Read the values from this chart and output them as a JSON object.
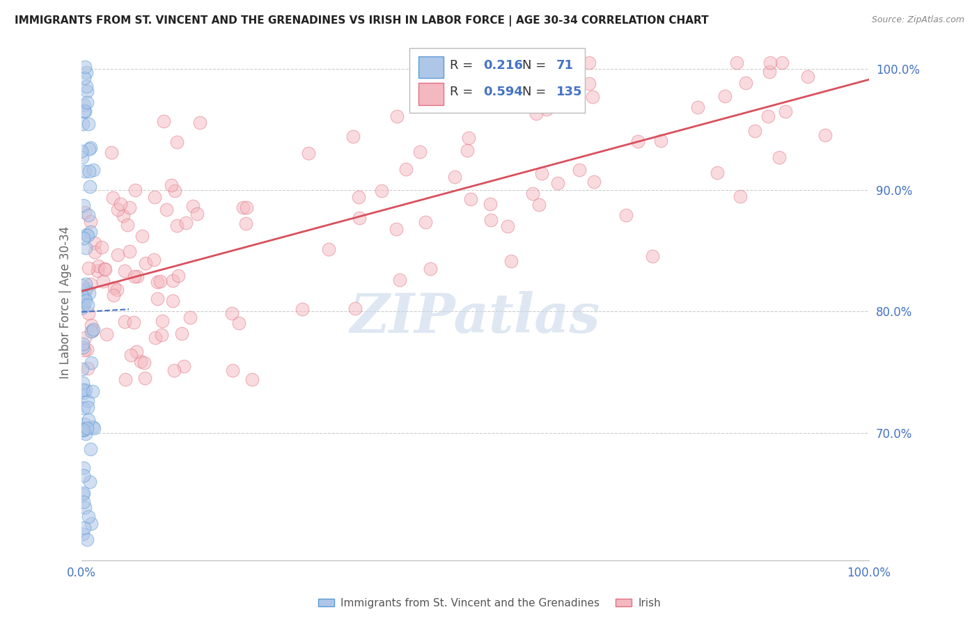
{
  "title": "IMMIGRANTS FROM ST. VINCENT AND THE GRENADINES VS IRISH IN LABOR FORCE | AGE 30-34 CORRELATION CHART",
  "source": "Source: ZipAtlas.com",
  "ylabel": "In Labor Force | Age 30-34",
  "xlim": [
    0.0,
    1.0
  ],
  "ylim": [
    0.595,
    1.02
  ],
  "yticks": [
    0.7,
    0.8,
    0.9,
    1.0
  ],
  "ytick_labels": [
    "70.0%",
    "80.0%",
    "90.0%",
    "100.0%"
  ],
  "xtick_labels": [
    "0.0%",
    "100.0%"
  ],
  "r_blue": 0.216,
  "n_blue": 71,
  "r_pink": 0.594,
  "n_pink": 135,
  "blue_color": "#aec6e8",
  "pink_color": "#f4b8c0",
  "blue_edge": "#5b9bd5",
  "pink_edge": "#e07080",
  "regression_blue": "#4472c4",
  "regression_pink": "#d94f5c",
  "legend_blue_fill": "#aec6e8",
  "legend_pink_fill": "#f4b8c0",
  "background_color": "#ffffff",
  "grid_color": "#cccccc",
  "title_color": "#222222",
  "label_color": "#666666",
  "watermark_color": "#c8d8ea",
  "axis_label_color": "#4472c4"
}
